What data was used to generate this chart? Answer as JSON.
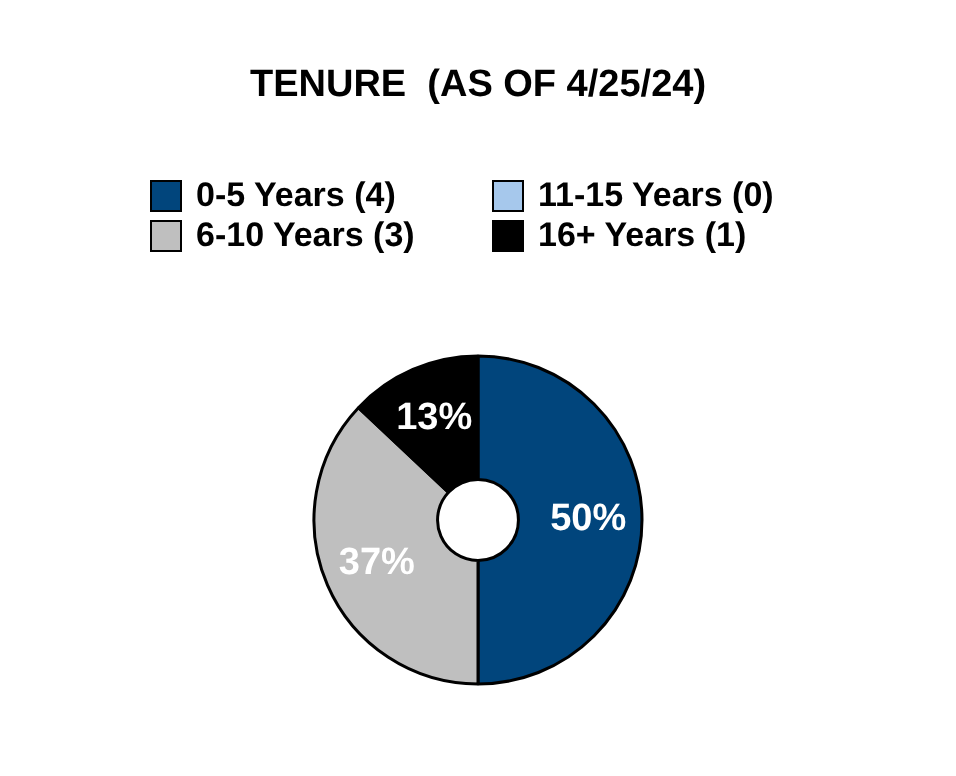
{
  "chart_data": {
    "type": "donut",
    "title": "TENURE  (AS OF 4/25/24)",
    "categories": [
      "0-5 Years (4)",
      "6-10 Years (3)",
      "11-15 Years (0)",
      "16+ Years (1)"
    ],
    "values": [
      50,
      37,
      0,
      13
    ],
    "colors": [
      "#01457c",
      "#bfbfbf",
      "#a6c8ec",
      "#000000"
    ],
    "value_labels": [
      "50%",
      "37%",
      null,
      "13%"
    ],
    "legend": "top"
  }
}
